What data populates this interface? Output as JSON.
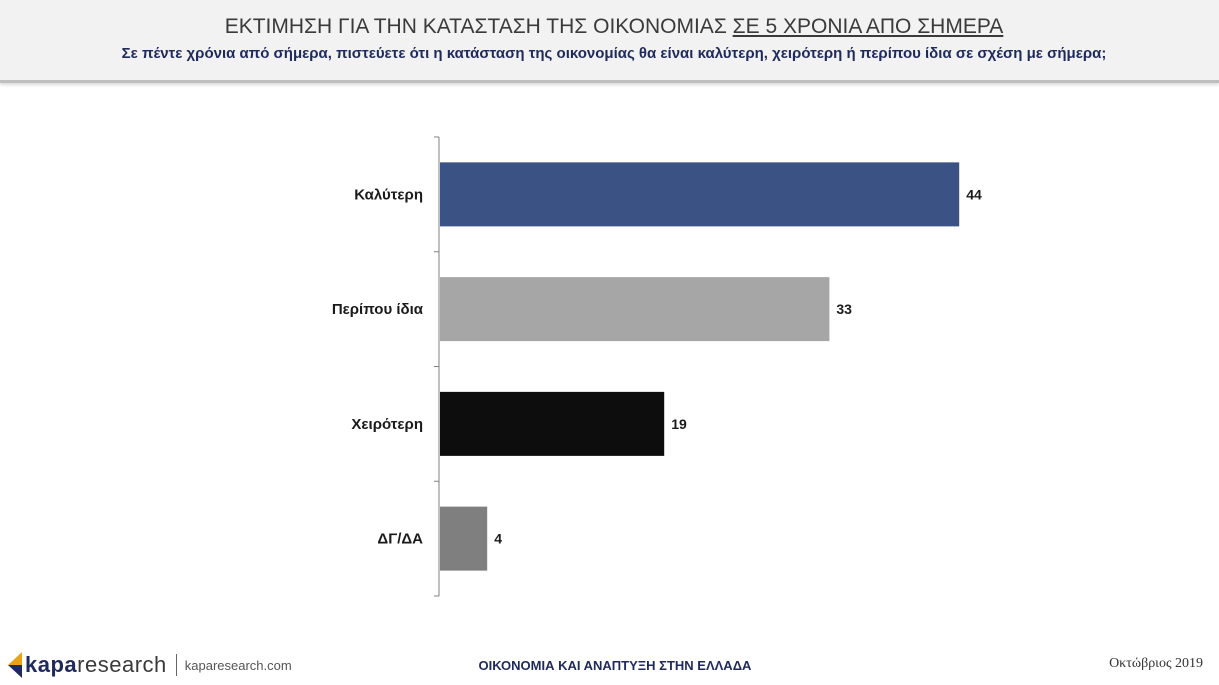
{
  "header": {
    "title_main": "ΕΚΤΙΜΗΣΗ ΓΙΑ ΤΗΝ ΚΑΤΑΣΤΑΣΗ ΤΗΣ ΟΙΚΟΝΟΜΙΑΣ ",
    "title_underlined": "ΣΕ 5 ΧΡΟΝΙΑ ΑΠΟ ΣΗΜΕΡΑ",
    "subtitle": "Σε πέντε χρόνια από σήμερα, πιστεύετε ότι η κατάσταση της οικονομίας θα είναι καλύτερη, χειρότερη ή περίπου ίδια σε σχέση με σήμερα;"
  },
  "chart_data": {
    "type": "bar",
    "orientation": "horizontal",
    "categories": [
      "Καλύτερη",
      "Περίπου ίδια",
      "Χειρότερη",
      "ΔΓ/ΔΑ"
    ],
    "values": [
      44,
      33,
      19,
      4
    ],
    "colors": [
      "#3b5284",
      "#a6a6a6",
      "#0d0d0d",
      "#7f7f7f"
    ],
    "xlim": [
      0,
      50
    ],
    "grid": false,
    "legend": "none"
  },
  "footer": {
    "logo_bold": "kapa",
    "logo_light": "research",
    "url": "kaparesearch.com",
    "center": "ΟΙΚΟΝΟΜΙΑ ΚΑΙ ΑΝΑΠΤΥΞΗ ΣΤΗΝ ΕΛΛΑΔΑ",
    "date": "Οκτώβριος 2019"
  }
}
